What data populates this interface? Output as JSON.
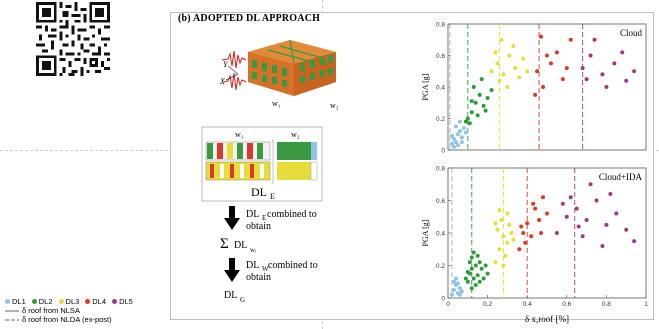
{
  "panel": {
    "title": "(b) ADOPTED DL APPROACH"
  },
  "building": {
    "axis_y": "Y",
    "axis_x": "X",
    "wall1": "w₁",
    "wall2": "w₂"
  },
  "schematic": {
    "col1": "w₁",
    "col2": "w₂",
    "label_main": "DL",
    "label_sub": "E"
  },
  "flow": {
    "step1_label": "DL",
    "step1_sub": "E",
    "step1_text": " combined to",
    "step1_text2": "obtain",
    "sum_symbol": "Σ",
    "sum_label": "DL",
    "sum_sub": "wᵢ",
    "step2_label": "DL",
    "step2_sub": "W",
    "step2_text": "combined to",
    "step2_text2": "obtain",
    "final_label": "DL",
    "final_sub": "G"
  },
  "legend": {
    "items": [
      {
        "label": "DL1",
        "color": "#8fc3e8"
      },
      {
        "label": "DL2",
        "color": "#2e9a3c"
      },
      {
        "label": "DL3",
        "color": "#e6dc3c"
      },
      {
        "label": "DL4",
        "color": "#d93a2a"
      },
      {
        "label": "DL5",
        "color": "#9a3a86"
      }
    ],
    "solid_text": "δ roof from NLSA",
    "dashed_text": "δ roof from NLDA (ex-post)"
  },
  "chart_data": [
    {
      "type": "scatter",
      "title": "Cloud",
      "ylabel": "PGA [g]",
      "xlabel": "",
      "xlim": [
        0,
        1
      ],
      "ylim": [
        0,
        0.8
      ],
      "yticks": [
        "0",
        "0.2",
        "0.4",
        "0.6",
        "0.8"
      ],
      "xticks": [],
      "thresholds": [
        0.01,
        0.1,
        0.26,
        0.46,
        0.68
      ],
      "series": [
        {
          "name": "DL1",
          "color": "#8fc3e8",
          "points": [
            [
              0.02,
              0.04
            ],
            [
              0.03,
              0.07
            ],
            [
              0.04,
              0.05
            ],
            [
              0.05,
              0.1
            ],
            [
              0.06,
              0.12
            ],
            [
              0.04,
              0.15
            ],
            [
              0.07,
              0.08
            ],
            [
              0.03,
              0.02
            ],
            [
              0.05,
              0.03
            ],
            [
              0.08,
              0.14
            ],
            [
              0.06,
              0.18
            ],
            [
              0.09,
              0.11
            ],
            [
              0.02,
              0.09
            ],
            [
              0.07,
              0.05
            ]
          ]
        },
        {
          "name": "DL2",
          "color": "#2e9a3c",
          "points": [
            [
              0.1,
              0.2
            ],
            [
              0.12,
              0.24
            ],
            [
              0.14,
              0.3
            ],
            [
              0.11,
              0.17
            ],
            [
              0.16,
              0.35
            ],
            [
              0.18,
              0.28
            ],
            [
              0.13,
              0.4
            ],
            [
              0.2,
              0.33
            ],
            [
              0.15,
              0.22
            ],
            [
              0.17,
              0.45
            ],
            [
              0.22,
              0.38
            ],
            [
              0.19,
              0.25
            ],
            [
              0.12,
              0.31
            ],
            [
              0.09,
              0.18
            ]
          ]
        },
        {
          "name": "DL3",
          "color": "#e6dc3c",
          "points": [
            [
              0.22,
              0.5
            ],
            [
              0.25,
              0.55
            ],
            [
              0.28,
              0.48
            ],
            [
              0.31,
              0.6
            ],
            [
              0.34,
              0.52
            ],
            [
              0.27,
              0.7
            ],
            [
              0.36,
              0.46
            ],
            [
              0.3,
              0.4
            ],
            [
              0.24,
              0.62
            ],
            [
              0.38,
              0.58
            ],
            [
              0.33,
              0.66
            ],
            [
              0.26,
              0.44
            ],
            [
              0.4,
              0.5
            ]
          ]
        },
        {
          "name": "DL4",
          "color": "#d93a2a",
          "points": [
            [
              0.45,
              0.5
            ],
            [
              0.48,
              0.4
            ],
            [
              0.52,
              0.55
            ],
            [
              0.55,
              0.62
            ],
            [
              0.58,
              0.45
            ],
            [
              0.62,
              0.7
            ],
            [
              0.5,
              0.6
            ],
            [
              0.47,
              0.72
            ],
            [
              0.6,
              0.52
            ],
            [
              0.44,
              0.35
            ]
          ]
        },
        {
          "name": "DL5",
          "color": "#9a3a86",
          "points": [
            [
              0.68,
              0.52
            ],
            [
              0.72,
              0.6
            ],
            [
              0.78,
              0.48
            ],
            [
              0.84,
              0.55
            ],
            [
              0.9,
              0.44
            ],
            [
              0.74,
              0.7
            ],
            [
              0.88,
              0.62
            ],
            [
              0.8,
              0.4
            ],
            [
              0.94,
              0.5
            ],
            [
              0.7,
              0.45
            ]
          ]
        }
      ]
    },
    {
      "type": "scatter",
      "title": "Cloud+IDA",
      "ylabel": "PGA [g]",
      "xlabel": "δ x,roof [%]",
      "xlim": [
        0,
        1
      ],
      "ylim": [
        0,
        0.8
      ],
      "yticks": [
        "0",
        "0.2",
        "0.4",
        "0.6",
        "0.8"
      ],
      "xticks": [
        "0",
        "0.2",
        "0.4",
        "0.6",
        "0.8",
        "1"
      ],
      "thresholds": [
        0.02,
        0.12,
        0.28,
        0.4,
        0.64
      ],
      "series": [
        {
          "name": "DL1",
          "color": "#8fc3e8",
          "points": [
            [
              0.02,
              0.02
            ],
            [
              0.03,
              0.05
            ],
            [
              0.04,
              0.08
            ],
            [
              0.05,
              0.03
            ],
            [
              0.06,
              0.06
            ],
            [
              0.03,
              0.1
            ],
            [
              0.07,
              0.04
            ],
            [
              0.04,
              0.12
            ],
            [
              0.05,
              0.09
            ],
            [
              0.06,
              0.02
            ]
          ]
        },
        {
          "name": "DL2",
          "color": "#2e9a3c",
          "points": [
            [
              0.1,
              0.1
            ],
            [
              0.11,
              0.15
            ],
            [
              0.12,
              0.18
            ],
            [
              0.13,
              0.12
            ],
            [
              0.14,
              0.2
            ],
            [
              0.15,
              0.14
            ],
            [
              0.16,
              0.22
            ],
            [
              0.12,
              0.25
            ],
            [
              0.1,
              0.16
            ],
            [
              0.17,
              0.18
            ],
            [
              0.18,
              0.12
            ],
            [
              0.14,
              0.08
            ],
            [
              0.11,
              0.22
            ],
            [
              0.19,
              0.2
            ],
            [
              0.13,
              0.28
            ],
            [
              0.16,
              0.1
            ],
            [
              0.2,
              0.15
            ],
            [
              0.09,
              0.12
            ],
            [
              0.15,
              0.26
            ],
            [
              0.12,
              0.06
            ]
          ]
        },
        {
          "name": "DL3",
          "color": "#e6dc3c",
          "points": [
            [
              0.24,
              0.22
            ],
            [
              0.26,
              0.3
            ],
            [
              0.28,
              0.38
            ],
            [
              0.25,
              0.42
            ],
            [
              0.3,
              0.34
            ],
            [
              0.27,
              0.48
            ],
            [
              0.29,
              0.26
            ],
            [
              0.32,
              0.4
            ],
            [
              0.26,
              0.54
            ],
            [
              0.31,
              0.45
            ],
            [
              0.28,
              0.2
            ],
            [
              0.33,
              0.36
            ],
            [
              0.24,
              0.46
            ],
            [
              0.3,
              0.52
            ]
          ]
        },
        {
          "name": "DL4",
          "color": "#d93a2a",
          "points": [
            [
              0.36,
              0.3
            ],
            [
              0.38,
              0.4
            ],
            [
              0.4,
              0.46
            ],
            [
              0.42,
              0.38
            ],
            [
              0.44,
              0.55
            ],
            [
              0.46,
              0.48
            ],
            [
              0.39,
              0.34
            ],
            [
              0.48,
              0.62
            ],
            [
              0.43,
              0.58
            ],
            [
              0.5,
              0.52
            ],
            [
              0.37,
              0.44
            ],
            [
              0.47,
              0.4
            ]
          ]
        },
        {
          "name": "DL5",
          "color": "#9a3a86",
          "points": [
            [
              0.55,
              0.4
            ],
            [
              0.6,
              0.5
            ],
            [
              0.65,
              0.55
            ],
            [
              0.7,
              0.48
            ],
            [
              0.75,
              0.6
            ],
            [
              0.8,
              0.45
            ],
            [
              0.62,
              0.62
            ],
            [
              0.85,
              0.52
            ],
            [
              0.9,
              0.42
            ],
            [
              0.68,
              0.38
            ],
            [
              0.72,
              0.7
            ],
            [
              0.78,
              0.32
            ],
            [
              0.58,
              0.58
            ],
            [
              0.94,
              0.35
            ],
            [
              0.66,
              0.44
            ],
            [
              0.82,
              0.64
            ]
          ]
        }
      ]
    }
  ]
}
